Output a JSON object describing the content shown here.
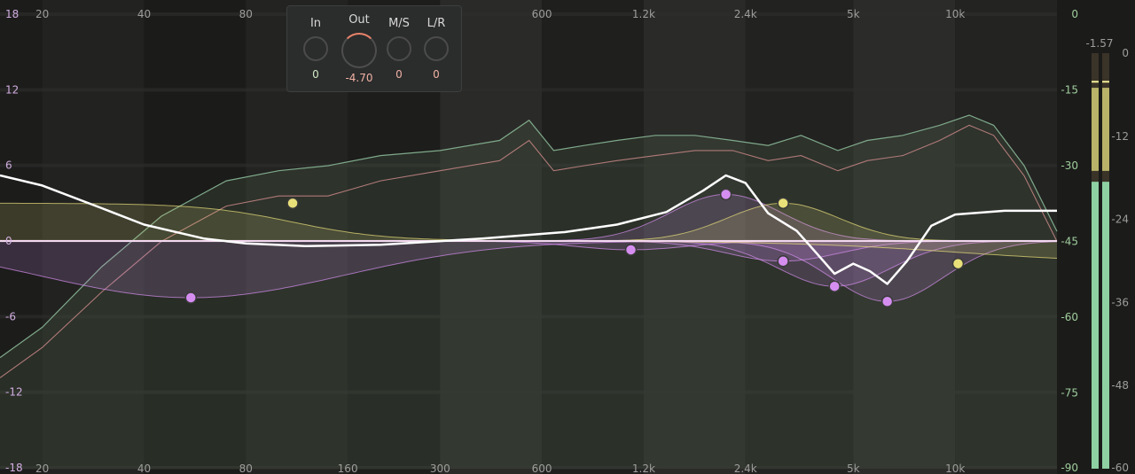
{
  "window": {
    "title": ""
  },
  "controls": {
    "in": {
      "label": "In",
      "value": "0"
    },
    "out": {
      "label": "Out",
      "value": "-4.70"
    },
    "ms": {
      "label": "M/S",
      "value": "0"
    },
    "lr": {
      "label": "L/R",
      "value": "0"
    }
  },
  "axes": {
    "freq_ticks": [
      "20",
      "40",
      "80",
      "160",
      "300",
      "600",
      "1.2k",
      "2.4k",
      "5k",
      "10k"
    ],
    "gain_ticks": [
      "18",
      "12",
      "6",
      "0",
      "-6",
      "-12",
      "-18"
    ],
    "spectrum_ticks": [
      "0",
      "-15",
      "-30",
      "-45",
      "-60",
      "-75",
      "-90"
    ],
    "meter_ticks": [
      "0",
      "-12",
      "-24",
      "-36",
      "-48",
      "-60"
    ]
  },
  "meter": {
    "peak_label": "-1.57",
    "level_db": -1.57
  },
  "colors": {
    "background": "#1e1e1c",
    "grid": "#2d2d2b",
    "gain_label": "#d2aee0",
    "spectrum_label": "#9fce9c",
    "band_yellow": "#e9e07a",
    "band_purple": "#d58ef0",
    "eq_curve": "#ffffff",
    "meter_green": "#8fd0a2"
  },
  "chart_data": {
    "type": "line",
    "x_scale": "log",
    "xlim": [
      15,
      20000
    ],
    "ylim": [
      -18,
      18
    ],
    "bands": [
      {
        "freq": 55,
        "gain": -4.5,
        "color": "purple",
        "type": "bell"
      },
      {
        "freq": 110,
        "gain": 3.0,
        "color": "yellow",
        "type": "low-shelf"
      },
      {
        "freq": 1100,
        "gain": -0.7,
        "color": "purple",
        "type": "bell"
      },
      {
        "freq": 2100,
        "gain": 3.7,
        "color": "purple",
        "type": "bell"
      },
      {
        "freq": 3100,
        "gain": 3.0,
        "color": "yellow",
        "type": "bell"
      },
      {
        "freq": 3100,
        "gain": -1.6,
        "color": "purple",
        "type": "bell"
      },
      {
        "freq": 4400,
        "gain": -3.6,
        "color": "purple",
        "type": "bell"
      },
      {
        "freq": 6300,
        "gain": -4.8,
        "color": "purple",
        "type": "bell"
      },
      {
        "freq": 10200,
        "gain": -1.8,
        "color": "yellow",
        "type": "high-shelf"
      }
    ],
    "eq_curve": {
      "x": [
        15,
        20,
        30,
        40,
        60,
        80,
        120,
        200,
        400,
        700,
        1000,
        1400,
        1800,
        2100,
        2400,
        2800,
        3400,
        3900,
        4400,
        5000,
        5600,
        6300,
        7200,
        8500,
        10000,
        14000,
        20000
      ],
      "y": [
        5.2,
        4.4,
        2.6,
        1.3,
        0.2,
        -0.2,
        -0.4,
        -0.3,
        0.2,
        0.7,
        1.3,
        2.3,
        4.0,
        5.2,
        4.6,
        2.2,
        0.8,
        -1.0,
        -2.6,
        -1.8,
        -2.4,
        -3.4,
        -1.6,
        1.2,
        2.1,
        2.4,
        2.4
      ]
    },
    "spectrum_in": {
      "x": [
        15,
        20,
        30,
        45,
        70,
        100,
        140,
        200,
        300,
        450,
        550,
        650,
        800,
        1000,
        1300,
        1700,
        2200,
        2800,
        3500,
        4500,
        5500,
        7000,
        9000,
        11000,
        13000,
        16000,
        20000
      ],
      "y": [
        -68,
        -62,
        -50,
        -40,
        -33,
        -31,
        -30,
        -28,
        -27,
        -25,
        -21,
        -27,
        -26,
        -25,
        -24,
        -24,
        -25,
        -26,
        -24,
        -27,
        -25,
        -24,
        -22,
        -20,
        -22,
        -30,
        -43
      ]
    },
    "spectrum_out": {
      "x": [
        15,
        20,
        30,
        45,
        70,
        100,
        140,
        200,
        300,
        450,
        550,
        650,
        800,
        1000,
        1300,
        1700,
        2200,
        2800,
        3500,
        4500,
        5500,
        7000,
        9000,
        11000,
        13000,
        16000,
        20000
      ],
      "y": [
        -72,
        -66,
        -55,
        -45,
        -38,
        -36,
        -36,
        -33,
        -31,
        -29,
        -25,
        -31,
        -30,
        -29,
        -28,
        -27,
        -27,
        -29,
        -28,
        -31,
        -29,
        -28,
        -25,
        -22,
        -24,
        -32,
        -45
      ]
    }
  }
}
